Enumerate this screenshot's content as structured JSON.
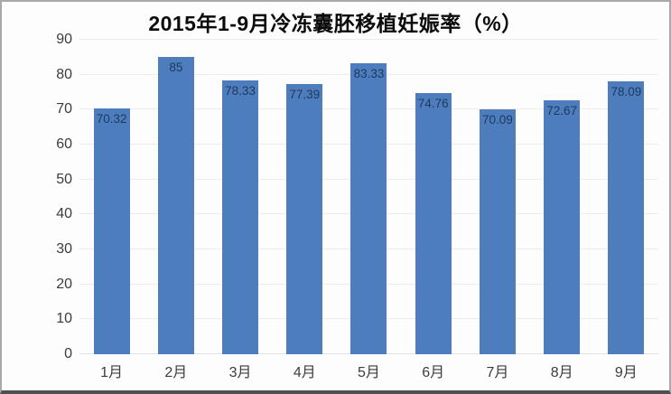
{
  "title": "2015年1-9月冷冻囊胚移植妊娠率（%）",
  "chart_data": {
    "type": "bar",
    "title": "2015年1-9月冷冻囊胚移植妊娠率（%）",
    "categories": [
      "1月",
      "2月",
      "3月",
      "4月",
      "5月",
      "6月",
      "7月",
      "8月",
      "9月"
    ],
    "values": [
      70.32,
      85,
      78.33,
      77.39,
      83.33,
      74.76,
      70.09,
      72.67,
      78.09
    ],
    "data_labels": [
      "70.32",
      "85",
      "78.33",
      "77.39",
      "83.33",
      "74.76",
      "70.09",
      "72.67",
      "78.09"
    ],
    "xlabel": "",
    "ylabel": "",
    "ylim": [
      0,
      90
    ],
    "yticks": [
      0,
      10,
      20,
      30,
      40,
      50,
      60,
      70,
      80,
      90
    ],
    "grid": true,
    "legend": false,
    "data_label_position": "inside-top",
    "colors": {
      "bar_fill": "#4d7dbd",
      "data_label_text": "#1e3a60",
      "axis_text": "#3c3c3c",
      "gridline": "#f0eced",
      "title_text": "#0b0b0b",
      "background": "#fdfdfd",
      "frame_border": "#a9a9a9",
      "frame_border_bottom": "#4f4f4f"
    }
  }
}
